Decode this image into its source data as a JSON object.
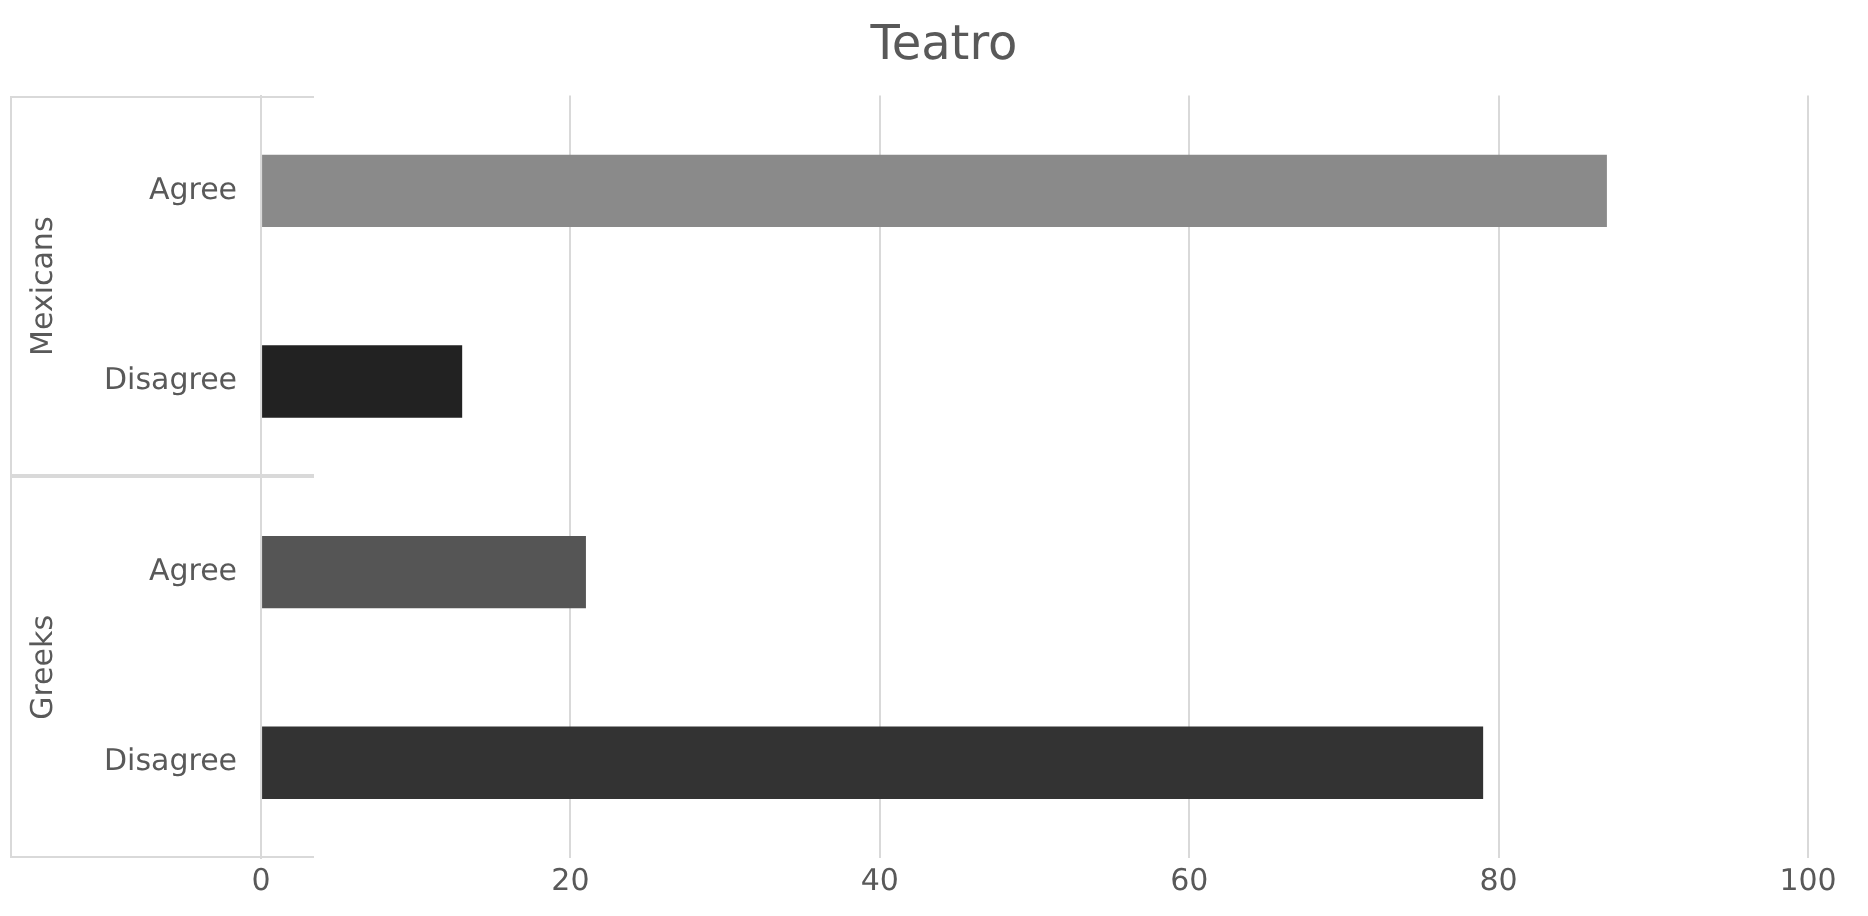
{
  "chart_data": {
    "type": "bar",
    "orientation": "horizontal",
    "title": "Teatro",
    "categories": [
      "Agree",
      "Disagree",
      "Agree",
      "Disagree"
    ],
    "values": [
      87,
      13,
      21,
      79
    ],
    "colors": [
      "#8a8a8a",
      "#222222",
      "#555555",
      "#333333"
    ],
    "xlim": [
      0,
      100
    ],
    "xticks": [
      0,
      20,
      40,
      60,
      80,
      100
    ],
    "grid": "x",
    "annotations": [
      "Mexicans",
      "Greeks"
    ]
  }
}
